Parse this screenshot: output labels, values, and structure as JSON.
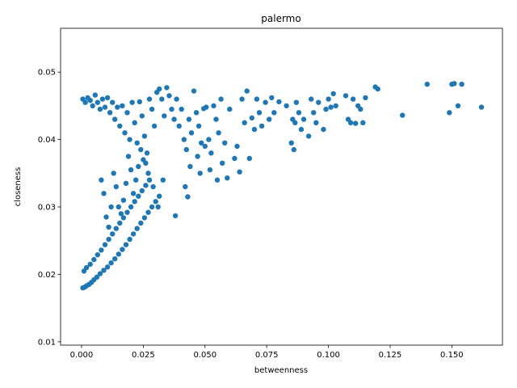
{
  "chart_data": {
    "type": "scatter",
    "title": "palermo",
    "xlabel": "betweenness",
    "ylabel": "closeness",
    "xlim": [
      -0.0085,
      0.1705
    ],
    "ylim": [
      0.0095,
      0.0565
    ],
    "xticks": [
      "0.000",
      "0.025",
      "0.050",
      "0.075",
      "0.100",
      "0.125",
      "0.150"
    ],
    "yticks": [
      "0.01",
      "0.02",
      "0.03",
      "0.04",
      "0.05"
    ],
    "grid": false,
    "legend": "none",
    "color": "#1f77b4",
    "series": [
      {
        "points": [
          [
            0.0005,
            0.018
          ],
          [
            0.0012,
            0.0181
          ],
          [
            0.002,
            0.0183
          ],
          [
            0.003,
            0.0185
          ],
          [
            0.004,
            0.0188
          ],
          [
            0.005,
            0.0192
          ],
          [
            0.0062,
            0.0196
          ],
          [
            0.0075,
            0.0201
          ],
          [
            0.009,
            0.0206
          ],
          [
            0.0105,
            0.0211
          ],
          [
            0.012,
            0.0217
          ],
          [
            0.0135,
            0.0223
          ],
          [
            0.015,
            0.023
          ],
          [
            0.0165,
            0.0237
          ],
          [
            0.018,
            0.0244
          ],
          [
            0.0195,
            0.0252
          ],
          [
            0.021,
            0.026
          ],
          [
            0.0225,
            0.0268
          ],
          [
            0.024,
            0.0276
          ],
          [
            0.0255,
            0.0284
          ],
          [
            0.027,
            0.0292
          ],
          [
            0.0285,
            0.03
          ],
          [
            0.03,
            0.0308
          ],
          [
            0.0315,
            0.0316
          ],
          [
            0.001,
            0.0205
          ],
          [
            0.002,
            0.021
          ],
          [
            0.0035,
            0.0215
          ],
          [
            0.005,
            0.0222
          ],
          [
            0.0065,
            0.0229
          ],
          [
            0.008,
            0.0236
          ],
          [
            0.0095,
            0.0244
          ],
          [
            0.011,
            0.0252
          ],
          [
            0.0125,
            0.026
          ],
          [
            0.014,
            0.0268
          ],
          [
            0.0155,
            0.0276
          ],
          [
            0.017,
            0.0284
          ],
          [
            0.0185,
            0.0292
          ],
          [
            0.02,
            0.03
          ],
          [
            0.0215,
            0.0308
          ],
          [
            0.023,
            0.0316
          ],
          [
            0.0245,
            0.0324
          ],
          [
            0.026,
            0.0332
          ],
          [
            0.0275,
            0.034
          ],
          [
            0.0005,
            0.046
          ],
          [
            0.0015,
            0.0455
          ],
          [
            0.0025,
            0.0462
          ],
          [
            0.0035,
            0.0458
          ],
          [
            0.0045,
            0.045
          ],
          [
            0.0055,
            0.0466
          ],
          [
            0.0065,
            0.0455
          ],
          [
            0.0075,
            0.0445
          ],
          [
            0.0085,
            0.046
          ],
          [
            0.0095,
            0.0448
          ],
          [
            0.0105,
            0.0462
          ],
          [
            0.0115,
            0.044
          ],
          [
            0.0125,
            0.0455
          ],
          [
            0.0135,
            0.043
          ],
          [
            0.0145,
            0.0448
          ],
          [
            0.0155,
            0.042
          ],
          [
            0.0165,
            0.045
          ],
          [
            0.0175,
            0.041
          ],
          [
            0.0185,
            0.044
          ],
          [
            0.0195,
            0.04
          ],
          [
            0.0205,
            0.0455
          ],
          [
            0.0215,
            0.0425
          ],
          [
            0.0225,
            0.0395
          ],
          [
            0.0235,
            0.0456
          ],
          [
            0.0245,
            0.0435
          ],
          [
            0.0255,
            0.0405
          ],
          [
            0.0265,
            0.038
          ],
          [
            0.0275,
            0.046
          ],
          [
            0.0285,
            0.0445
          ],
          [
            0.0295,
            0.042
          ],
          [
            0.0305,
            0.047
          ],
          [
            0.0315,
            0.0475
          ],
          [
            0.0325,
            0.046
          ],
          [
            0.0335,
            0.0435
          ],
          [
            0.0345,
            0.0477
          ],
          [
            0.0355,
            0.0465
          ],
          [
            0.0365,
            0.0445
          ],
          [
            0.0375,
            0.043
          ],
          [
            0.0385,
            0.046
          ],
          [
            0.0395,
            0.042
          ],
          [
            0.0405,
            0.0445
          ],
          [
            0.0415,
            0.04
          ],
          [
            0.0425,
            0.0385
          ],
          [
            0.0435,
            0.043
          ],
          [
            0.0445,
            0.041
          ],
          [
            0.0455,
            0.0472
          ],
          [
            0.0465,
            0.044
          ],
          [
            0.0475,
            0.042
          ],
          [
            0.0485,
            0.0395
          ],
          [
            0.0495,
            0.0446
          ],
          [
            0.0505,
            0.0448
          ],
          [
            0.0515,
            0.04
          ],
          [
            0.0525,
            0.038
          ],
          [
            0.0535,
            0.045
          ],
          [
            0.0545,
            0.043
          ],
          [
            0.0555,
            0.041
          ],
          [
            0.0565,
            0.046
          ],
          [
            0.058,
            0.0395
          ],
          [
            0.06,
            0.0445
          ],
          [
            0.062,
            0.0372
          ],
          [
            0.064,
            0.0352
          ],
          [
            0.065,
            0.046
          ],
          [
            0.066,
            0.0425
          ],
          [
            0.067,
            0.0472
          ],
          [
            0.068,
            0.0372
          ],
          [
            0.069,
            0.0432
          ],
          [
            0.07,
            0.0415
          ],
          [
            0.071,
            0.046
          ],
          [
            0.072,
            0.044
          ],
          [
            0.073,
            0.042
          ],
          [
            0.0745,
            0.0455
          ],
          [
            0.076,
            0.043
          ],
          [
            0.077,
            0.0462
          ],
          [
            0.078,
            0.044
          ],
          [
            0.08,
            0.0456
          ],
          [
            0.083,
            0.045
          ],
          [
            0.085,
            0.0395
          ],
          [
            0.0855,
            0.043
          ],
          [
            0.086,
            0.0385
          ],
          [
            0.0865,
            0.0425
          ],
          [
            0.087,
            0.0455
          ],
          [
            0.088,
            0.044
          ],
          [
            0.089,
            0.0415
          ],
          [
            0.09,
            0.043
          ],
          [
            0.092,
            0.0405
          ],
          [
            0.093,
            0.046
          ],
          [
            0.094,
            0.044
          ],
          [
            0.095,
            0.0425
          ],
          [
            0.096,
            0.0455
          ],
          [
            0.098,
            0.0415
          ],
          [
            0.099,
            0.0445
          ],
          [
            0.1,
            0.046
          ],
          [
            0.101,
            0.0448
          ],
          [
            0.102,
            0.0468
          ],
          [
            0.103,
            0.045
          ],
          [
            0.107,
            0.0465
          ],
          [
            0.108,
            0.043
          ],
          [
            0.109,
            0.0425
          ],
          [
            0.11,
            0.046
          ],
          [
            0.111,
            0.0424
          ],
          [
            0.112,
            0.045
          ],
          [
            0.113,
            0.0445
          ],
          [
            0.114,
            0.0425
          ],
          [
            0.115,
            0.0462
          ],
          [
            0.119,
            0.0478
          ],
          [
            0.12,
            0.0475
          ],
          [
            0.13,
            0.0436
          ],
          [
            0.14,
            0.0482
          ],
          [
            0.149,
            0.044
          ],
          [
            0.15,
            0.0482
          ],
          [
            0.151,
            0.0483
          ],
          [
            0.1525,
            0.045
          ],
          [
            0.154,
            0.0482
          ],
          [
            0.162,
            0.0448
          ],
          [
            0.038,
            0.0287
          ],
          [
            0.042,
            0.033
          ],
          [
            0.043,
            0.0315
          ],
          [
            0.044,
            0.036
          ],
          [
            0.047,
            0.0375
          ],
          [
            0.048,
            0.035
          ],
          [
            0.05,
            0.039
          ],
          [
            0.052,
            0.0355
          ],
          [
            0.055,
            0.034
          ],
          [
            0.057,
            0.0365
          ],
          [
            0.059,
            0.0343
          ],
          [
            0.063,
            0.039
          ],
          [
            0.033,
            0.034
          ],
          [
            0.031,
            0.03
          ],
          [
            0.029,
            0.033
          ],
          [
            0.027,
            0.035
          ],
          [
            0.026,
            0.0365
          ],
          [
            0.025,
            0.037
          ],
          [
            0.024,
            0.0385
          ],
          [
            0.023,
            0.036
          ],
          [
            0.022,
            0.034
          ],
          [
            0.021,
            0.032
          ],
          [
            0.02,
            0.0355
          ],
          [
            0.019,
            0.0375
          ],
          [
            0.018,
            0.0335
          ],
          [
            0.017,
            0.031
          ],
          [
            0.016,
            0.029
          ],
          [
            0.015,
            0.03
          ],
          [
            0.014,
            0.033
          ],
          [
            0.013,
            0.035
          ],
          [
            0.012,
            0.03
          ],
          [
            0.011,
            0.027
          ],
          [
            0.01,
            0.0285
          ],
          [
            0.009,
            0.032
          ],
          [
            0.008,
            0.034
          ]
        ]
      }
    ]
  }
}
